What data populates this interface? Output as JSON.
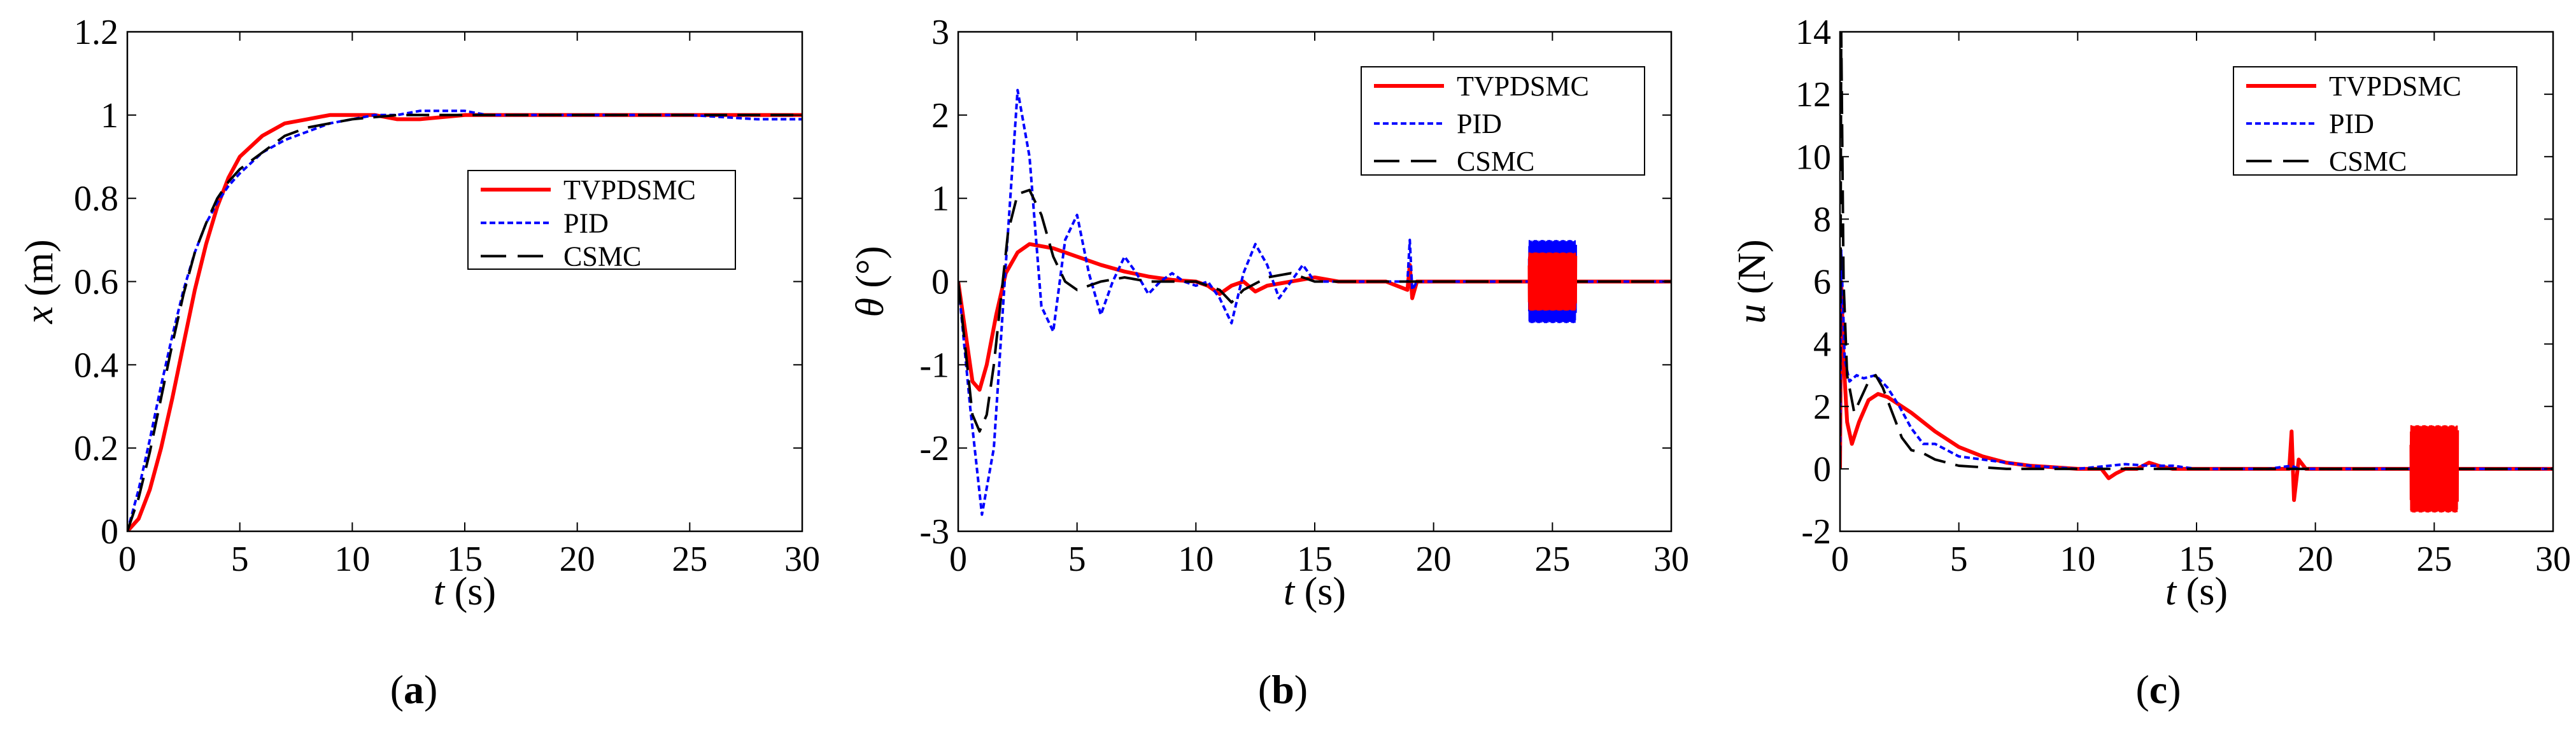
{
  "figure": {
    "panel_labels": [
      "a",
      "b",
      "c"
    ]
  },
  "colors": {
    "TVPDSMC": "#ff0000",
    "PID": "#0000ff",
    "CSMC": "#000000"
  },
  "chart_data": [
    {
      "type": "line",
      "panel": "a",
      "xlabel_sym": "t",
      "xlabel_unit": " (s)",
      "ylabel_sym": "x",
      "ylabel_unit": " (m)",
      "xlim": [
        0,
        30
      ],
      "ylim": [
        0,
        1.2
      ],
      "xticks": [
        "0",
        "5",
        "10",
        "15",
        "20",
        "25",
        "30"
      ],
      "yticks": [
        "0",
        "0.2",
        "0.4",
        "0.6",
        "0.8",
        "1",
        "1.2"
      ],
      "xtick_values": [
        0,
        5,
        10,
        15,
        20,
        25,
        30
      ],
      "ytick_values": [
        0,
        0.2,
        0.4,
        0.6,
        0.8,
        1,
        1.2
      ],
      "legend": [
        "TVPDSMC",
        "PID",
        "CSMC"
      ],
      "series": [
        {
          "name": "TVPDSMC",
          "x": [
            0,
            0.5,
            1,
            1.5,
            2,
            2.5,
            3,
            3.5,
            4,
            4.5,
            5,
            6,
            7,
            8,
            9,
            10,
            11,
            12,
            13,
            15,
            18,
            20,
            25,
            30
          ],
          "y": [
            0,
            0.03,
            0.1,
            0.2,
            0.32,
            0.45,
            0.58,
            0.69,
            0.78,
            0.85,
            0.9,
            0.95,
            0.98,
            0.99,
            1.0,
            1.0,
            1.0,
            0.99,
            0.99,
            1.0,
            1.0,
            1.0,
            1.0,
            1.0
          ]
        },
        {
          "name": "PID",
          "x": [
            0,
            0.5,
            1,
            1.5,
            2,
            2.5,
            3,
            3.5,
            4,
            4.5,
            5,
            6,
            7,
            8,
            9,
            10,
            11,
            12,
            13,
            14,
            15,
            16,
            18,
            20,
            22,
            25,
            28,
            30
          ],
          "y": [
            0,
            0.1,
            0.22,
            0.35,
            0.47,
            0.58,
            0.67,
            0.74,
            0.79,
            0.83,
            0.86,
            0.91,
            0.94,
            0.96,
            0.98,
            0.99,
            1.0,
            1.0,
            1.01,
            1.01,
            1.01,
            1.0,
            1.0,
            1.0,
            1.0,
            1.0,
            0.99,
            0.99
          ]
        },
        {
          "name": "CSMC",
          "x": [
            0,
            0.5,
            1,
            1.5,
            2,
            2.5,
            3,
            3.5,
            4,
            4.5,
            5,
            6,
            7,
            8,
            9,
            10,
            12,
            15,
            20,
            25,
            30
          ],
          "y": [
            0,
            0.08,
            0.19,
            0.32,
            0.45,
            0.57,
            0.67,
            0.74,
            0.8,
            0.84,
            0.87,
            0.91,
            0.95,
            0.97,
            0.98,
            0.99,
            1.0,
            1.0,
            1.0,
            1.0,
            1.0
          ]
        }
      ]
    },
    {
      "type": "line",
      "panel": "b",
      "xlabel_sym": "t",
      "xlabel_unit": " (s)",
      "ylabel_sym": "θ",
      "ylabel_unit": " (°)",
      "xlim": [
        0,
        30
      ],
      "ylim": [
        -3,
        3
      ],
      "xticks": [
        "0",
        "5",
        "10",
        "15",
        "20",
        "25",
        "30"
      ],
      "yticks": [
        "-3",
        "-2",
        "-1",
        "0",
        "1",
        "2",
        "3"
      ],
      "xtick_values": [
        0,
        5,
        10,
        15,
        20,
        25,
        30
      ],
      "ytick_values": [
        -3,
        -2,
        -1,
        0,
        1,
        2,
        3
      ],
      "legend": [
        "TVPDSMC",
        "PID",
        "CSMC"
      ],
      "series": [
        {
          "name": "TVPDSMC",
          "x": [
            0,
            0.3,
            0.6,
            0.9,
            1.2,
            1.6,
            2,
            2.5,
            3,
            4,
            5,
            6,
            7,
            8,
            9,
            10,
            10.5,
            11,
            11.5,
            12,
            12.5,
            13,
            14,
            15,
            16,
            18,
            18.9,
            19,
            19.1,
            19.3,
            20,
            22,
            24,
            26,
            28,
            30
          ],
          "y": [
            0,
            -0.6,
            -1.2,
            -1.3,
            -1.0,
            -0.4,
            0.1,
            0.35,
            0.45,
            0.4,
            0.3,
            0.2,
            0.12,
            0.06,
            0.02,
            0.0,
            -0.05,
            -0.15,
            -0.05,
            0.0,
            -0.12,
            -0.05,
            0.0,
            0.05,
            0.0,
            0.0,
            -0.1,
            0.2,
            -0.2,
            0.0,
            0.0,
            0.0,
            0.0,
            0.0,
            0.0,
            0.0
          ]
        },
        {
          "name": "PID",
          "x": [
            0,
            0.5,
            1,
            1.5,
            2,
            2.5,
            3,
            3.5,
            4,
            4.5,
            5,
            5.5,
            6,
            6.5,
            7,
            7.5,
            8,
            8.5,
            9,
            9.5,
            10,
            10.5,
            11,
            11.5,
            12,
            12.5,
            13,
            13.5,
            14,
            14.5,
            15,
            16,
            17,
            18,
            18.9,
            19,
            19.1,
            19.3,
            20,
            22,
            24,
            26,
            28,
            30
          ],
          "y": [
            0,
            -1.5,
            -2.8,
            -2.0,
            0.2,
            2.3,
            1.5,
            -0.3,
            -0.6,
            0.5,
            0.8,
            0.1,
            -0.4,
            0.0,
            0.3,
            0.1,
            -0.15,
            0.0,
            0.1,
            0.0,
            -0.05,
            0.0,
            -0.2,
            -0.5,
            0.1,
            0.45,
            0.2,
            -0.2,
            0.0,
            0.2,
            0.0,
            0.0,
            0.0,
            0.0,
            0.0,
            0.5,
            -0.1,
            0.0,
            0.0,
            0.0,
            0.0,
            0.0,
            0.0,
            0.0
          ]
        },
        {
          "name": "CSMC",
          "x": [
            0,
            0.3,
            0.6,
            0.9,
            1.2,
            1.5,
            1.8,
            2.1,
            2.5,
            3,
            3.5,
            4,
            4.5,
            5,
            5.5,
            6,
            7,
            8,
            9,
            10,
            11,
            11.5,
            12,
            13,
            14,
            15,
            16,
            18,
            20,
            22,
            25,
            30
          ],
          "y": [
            0,
            -0.8,
            -1.6,
            -1.8,
            -1.6,
            -1.0,
            -0.2,
            0.6,
            1.05,
            1.1,
            0.8,
            0.3,
            0.0,
            -0.1,
            -0.05,
            0.0,
            0.05,
            0.0,
            0.0,
            0.0,
            -0.1,
            -0.25,
            -0.1,
            0.05,
            0.1,
            0.0,
            0.0,
            0.0,
            0.0,
            0.0,
            0.0,
            0.0
          ]
        }
      ],
      "noise_band": {
        "x_start": 24,
        "x_end": 26,
        "PID_amplitude": 0.5,
        "TVPDSMC_amplitude": 0.35
      }
    },
    {
      "type": "line",
      "panel": "c",
      "xlabel_sym": "t",
      "xlabel_unit": " (s)",
      "ylabel_sym": "u",
      "ylabel_unit": " (N)",
      "xlim": [
        0,
        30
      ],
      "ylim": [
        -2,
        14
      ],
      "xticks": [
        "0",
        "5",
        "10",
        "15",
        "20",
        "25",
        "30"
      ],
      "yticks": [
        "-2",
        "0",
        "2",
        "4",
        "6",
        "8",
        "10",
        "12",
        "14"
      ],
      "xtick_values": [
        0,
        5,
        10,
        15,
        20,
        25,
        30
      ],
      "ytick_values": [
        -2,
        0,
        2,
        4,
        6,
        8,
        10,
        12,
        14
      ],
      "legend": [
        "TVPDSMC",
        "PID",
        "CSMC"
      ],
      "series": [
        {
          "name": "TVPDSMC",
          "x": [
            0,
            0.05,
            0.15,
            0.3,
            0.5,
            0.8,
            1.2,
            1.6,
            2,
            3,
            4,
            5,
            6,
            7,
            8,
            9,
            10,
            11,
            11.3,
            11.6,
            12,
            12.5,
            13,
            13.4,
            14,
            15,
            18,
            18.9,
            19,
            19.1,
            19.3,
            19.6,
            20,
            22,
            24,
            26,
            28,
            30
          ],
          "y": [
            0,
            6,
            3.5,
            1.5,
            0.8,
            1.5,
            2.2,
            2.4,
            2.3,
            1.8,
            1.2,
            0.7,
            0.4,
            0.2,
            0.1,
            0.05,
            0.0,
            0.0,
            -0.3,
            -0.15,
            0.0,
            0.0,
            0.2,
            0.1,
            0.0,
            0.0,
            0.0,
            0.0,
            1.2,
            -1.0,
            0.3,
            0.0,
            0.0,
            0.0,
            0.0,
            0.0,
            0.0,
            0.0
          ]
        },
        {
          "name": "PID",
          "x": [
            0,
            0.05,
            0.2,
            0.4,
            0.7,
            1,
            1.5,
            2,
            2.5,
            3,
            3.5,
            4,
            5,
            6,
            7,
            8,
            10,
            12,
            13,
            14,
            15,
            18,
            19,
            19.3,
            20,
            22,
            25,
            28,
            30
          ],
          "y": [
            0,
            7,
            3.5,
            2.8,
            3.0,
            2.9,
            3.0,
            2.6,
            2.0,
            1.3,
            0.8,
            0.8,
            0.4,
            0.3,
            0.2,
            0.1,
            0.0,
            0.15,
            0.1,
            0.1,
            0.0,
            0.0,
            0.1,
            0.0,
            0.0,
            0.0,
            0.0,
            0.0,
            0.0
          ]
        },
        {
          "name": "CSMC",
          "x": [
            0,
            0.05,
            0.15,
            0.3,
            0.6,
            0.9,
            1.2,
            1.5,
            1.8,
            2.2,
            2.6,
            3,
            3.5,
            4,
            4.5,
            5,
            6,
            7,
            8,
            10,
            15,
            20,
            25,
            30
          ],
          "y": [
            0,
            14,
            6,
            3.0,
            1.8,
            2.3,
            2.8,
            3.0,
            2.6,
            1.8,
            1.0,
            0.6,
            0.5,
            0.3,
            0.2,
            0.1,
            0.05,
            0.0,
            0.0,
            0.0,
            0.0,
            0.0,
            0.0,
            0.0
          ]
        }
      ],
      "noise_band": {
        "x_start": 24,
        "x_end": 26,
        "TVPDSMC_amplitude": 1.4
      }
    }
  ]
}
